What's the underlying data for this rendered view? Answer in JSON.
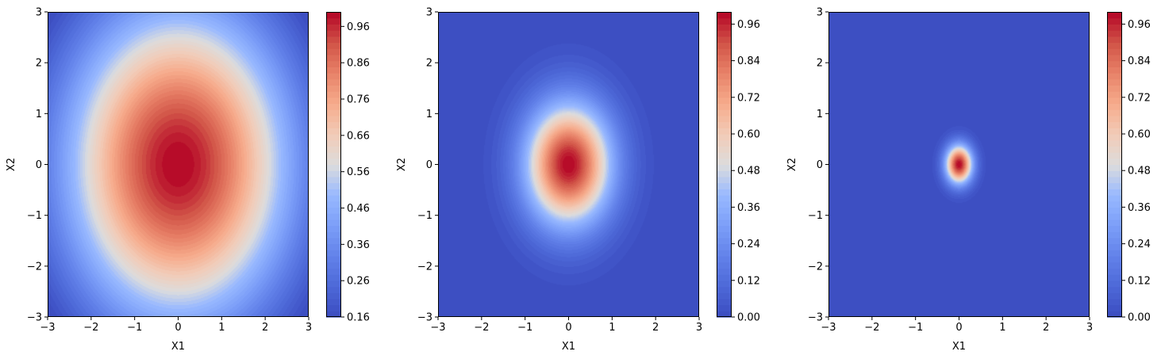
{
  "chart_data": [
    {
      "type": "heatmap",
      "title": "",
      "xlabel": "X1",
      "ylabel": "X2",
      "xlim": [
        -3,
        3
      ],
      "ylim": [
        -3,
        3
      ],
      "x_ticks": [
        "−3",
        "−2",
        "−1",
        "0",
        "1",
        "2",
        "3"
      ],
      "y_ticks": [
        "−3",
        "−2",
        "−1",
        "0",
        "1",
        "2",
        "3"
      ],
      "colormap": "coolwarm",
      "grid": false,
      "surface": {
        "peak": 1.0,
        "center": [
          0,
          0
        ],
        "sigma_x1": 2.0,
        "sigma_x2": 2.4
      },
      "colorbar": {
        "min": 0.16,
        "max": 1.0,
        "ticks": [
          "0.16",
          "0.26",
          "0.36",
          "0.46",
          "0.56",
          "0.66",
          "0.76",
          "0.86",
          "0.96"
        ],
        "tick_values": [
          0.16,
          0.26,
          0.36,
          0.46,
          0.56,
          0.66,
          0.76,
          0.86,
          0.96
        ],
        "levels": 50
      }
    },
    {
      "type": "heatmap",
      "title": "",
      "xlabel": "X1",
      "ylabel": "X2",
      "xlim": [
        -3,
        3
      ],
      "ylim": [
        -3,
        3
      ],
      "x_ticks": [
        "−3",
        "−2",
        "−1",
        "0",
        "1",
        "2",
        "3"
      ],
      "y_ticks": [
        "−3",
        "−2",
        "−1",
        "0",
        "1",
        "2",
        "3"
      ],
      "colormap": "coolwarm",
      "grid": false,
      "surface": {
        "peak": 1.0,
        "center": [
          0,
          0
        ],
        "sigma_x1": 0.7,
        "sigma_x2": 0.85
      },
      "colorbar": {
        "min": 0.0,
        "max": 1.0,
        "ticks": [
          "0.00",
          "0.12",
          "0.24",
          "0.36",
          "0.48",
          "0.60",
          "0.72",
          "0.84",
          "0.96"
        ],
        "tick_values": [
          0.0,
          0.12,
          0.24,
          0.36,
          0.48,
          0.6,
          0.72,
          0.84,
          0.96
        ],
        "levels": 50
      }
    },
    {
      "type": "heatmap",
      "title": "",
      "xlabel": "X1",
      "ylabel": "X2",
      "xlim": [
        -3,
        3
      ],
      "ylim": [
        -3,
        3
      ],
      "x_ticks": [
        "−3",
        "−2",
        "−1",
        "0",
        "1",
        "2",
        "3"
      ],
      "y_ticks": [
        "−3",
        "−2",
        "−1",
        "0",
        "1",
        "2",
        "3"
      ],
      "colormap": "coolwarm",
      "grid": false,
      "surface": {
        "peak": 1.0,
        "center": [
          0,
          0
        ],
        "sigma_x1": 0.22,
        "sigma_x2": 0.27
      },
      "colorbar": {
        "min": 0.0,
        "max": 1.0,
        "ticks": [
          "0.00",
          "0.12",
          "0.24",
          "0.36",
          "0.48",
          "0.60",
          "0.72",
          "0.84",
          "0.96"
        ],
        "tick_values": [
          0.0,
          0.12,
          0.24,
          0.36,
          0.48,
          0.6,
          0.72,
          0.84,
          0.96
        ],
        "levels": 50
      }
    }
  ]
}
